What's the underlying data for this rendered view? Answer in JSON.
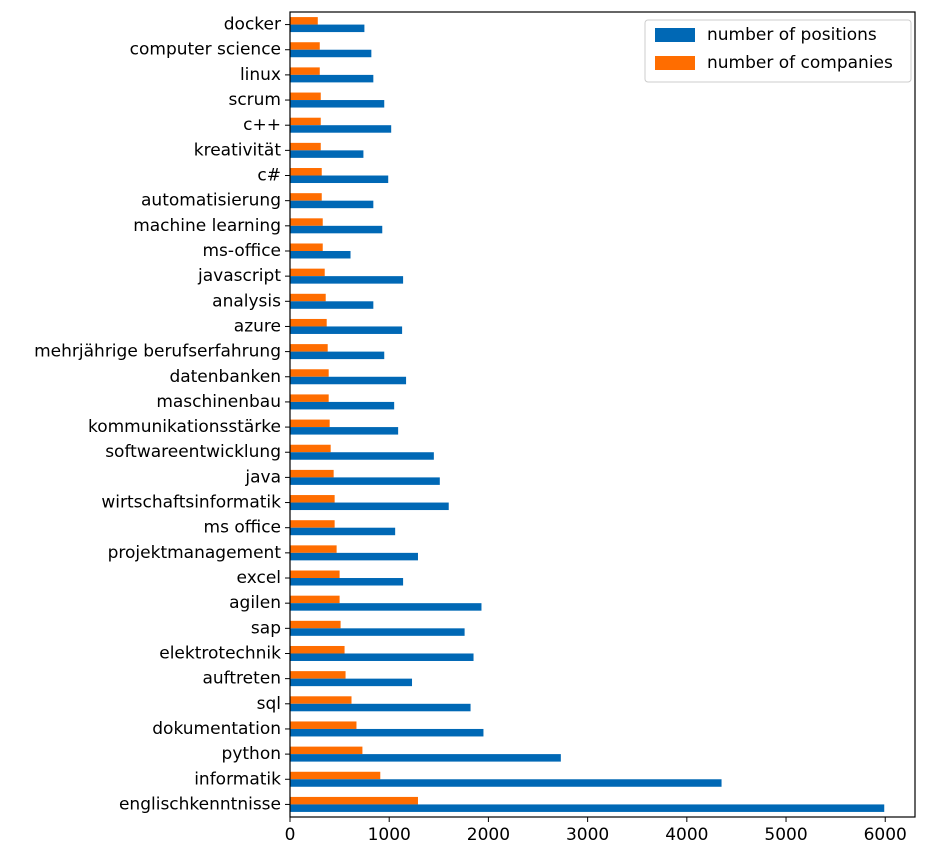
{
  "chart_data": {
    "type": "bar",
    "orientation": "horizontal",
    "categories": [
      "englischkenntnisse",
      "informatik",
      "python",
      "dokumentation",
      "sql",
      "auftreten",
      "elektrotechnik",
      "sap",
      "agilen",
      "excel",
      "projektmanagement",
      "ms office",
      "wirtschaftsinformatik",
      "java",
      "softwareentwicklung",
      "kommunikationsstärke",
      "maschinenbau",
      "datenbanken",
      "mehrjährige berufserfahrung",
      "azure",
      "analysis",
      "javascript",
      "ms-office",
      "machine learning",
      "automatisierung",
      "c#",
      "kreativität",
      "c++",
      "scrum",
      "linux",
      "computer science",
      "docker"
    ],
    "series": [
      {
        "name": "number of positions",
        "color": "#0068b5",
        "values": [
          5990,
          4350,
          2730,
          1950,
          1820,
          1230,
          1850,
          1760,
          1930,
          1140,
          1290,
          1060,
          1600,
          1510,
          1450,
          1090,
          1050,
          1170,
          950,
          1130,
          840,
          1140,
          610,
          930,
          840,
          990,
          740,
          1020,
          950,
          840,
          820,
          750
        ]
      },
      {
        "name": "number of companies",
        "color": "#ff6d00",
        "values": [
          1290,
          910,
          730,
          670,
          620,
          560,
          550,
          510,
          500,
          500,
          470,
          450,
          450,
          440,
          410,
          400,
          390,
          390,
          380,
          370,
          360,
          350,
          330,
          330,
          320,
          320,
          310,
          310,
          310,
          300,
          300,
          280
        ]
      }
    ],
    "x_ticks": [
      "0",
      "1000",
      "2000",
      "3000",
      "4000",
      "5000",
      "6000"
    ],
    "xlim": [
      0,
      6300
    ],
    "grid": false,
    "legend_position": "top-right",
    "title": "",
    "xlabel": "",
    "ylabel": ""
  }
}
